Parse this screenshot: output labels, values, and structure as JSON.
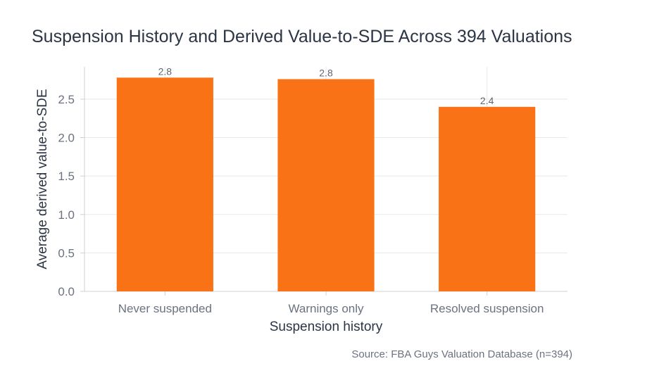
{
  "title": "Suspension History and Derived Value-to-SDE Across 394 Valuations",
  "source": "Source: FBA Guys Valuation Database (n=394)",
  "colors": {
    "bar": "#f97316",
    "grid": "#e8e8e8",
    "axis": "#d0d0d0"
  },
  "chart_data": {
    "type": "bar",
    "categories": [
      "Never suspended",
      "Warnings only",
      "Resolved suspension"
    ],
    "values": [
      2.78,
      2.76,
      2.4
    ],
    "data_labels": [
      "2.8",
      "2.8",
      "2.4"
    ],
    "xlabel": "Suspension history",
    "ylabel": "Average derived value-to-SDE",
    "ylim": [
      0,
      2.92
    ],
    "yticks": [
      0,
      0.5,
      1,
      1.5,
      2,
      2.5
    ],
    "ytick_labels": [
      "0.0",
      "0.5",
      "1.0",
      "1.5",
      "2.0",
      "2.5"
    ],
    "grid": true,
    "legend": "none"
  }
}
